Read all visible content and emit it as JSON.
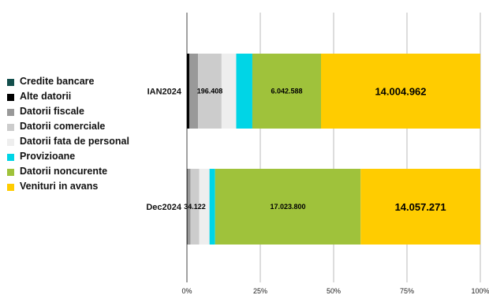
{
  "chart_data": {
    "type": "bar",
    "stacked": true,
    "normalized": true,
    "orientation": "horizontal",
    "title": "",
    "xlabel": "",
    "ylabel": "",
    "xlim": [
      0,
      100
    ],
    "grid": true,
    "legend_position": "left",
    "x_ticks": [
      "0%",
      "25%",
      "50%",
      "75%",
      "100%"
    ],
    "categories": [
      "IAN2024",
      "Dec2024"
    ],
    "series": [
      {
        "name": "Credite bancare",
        "color": "#134f4c",
        "values": [
          0.0,
          0.0
        ],
        "labels": [
          "",
          ""
        ]
      },
      {
        "name": "Alte datorii",
        "color": "#000000",
        "values": [
          0.8,
          0.2
        ],
        "labels": [
          "",
          ""
        ]
      },
      {
        "name": "Datorii fiscale",
        "color": "#999999",
        "values": [
          3.0,
          1.0
        ],
        "labels": [
          "",
          ""
        ]
      },
      {
        "name": "Datorii comerciale",
        "color": "#cccccc",
        "values": [
          8.0,
          3.0
        ],
        "labels": [
          "196.408",
          "34.122"
        ]
      },
      {
        "name": "Datorii fata de personal",
        "color": "#eeeeee",
        "values": [
          5.0,
          3.5
        ],
        "labels": [
          "",
          ""
        ]
      },
      {
        "name": "Provizioane",
        "color": "#00d5e6",
        "values": [
          5.5,
          1.9
        ],
        "labels": [
          "",
          ""
        ]
      },
      {
        "name": "Datorii noncurente",
        "color": "#9fc23b",
        "values": [
          23.4,
          49.6
        ],
        "labels": [
          "6.042.588",
          "17.023.800"
        ]
      },
      {
        "name": "Venituri in avans",
        "color": "#ffcc00",
        "values": [
          54.3,
          40.8
        ],
        "labels": [
          "14.004.962",
          "14.057.271"
        ]
      }
    ]
  }
}
